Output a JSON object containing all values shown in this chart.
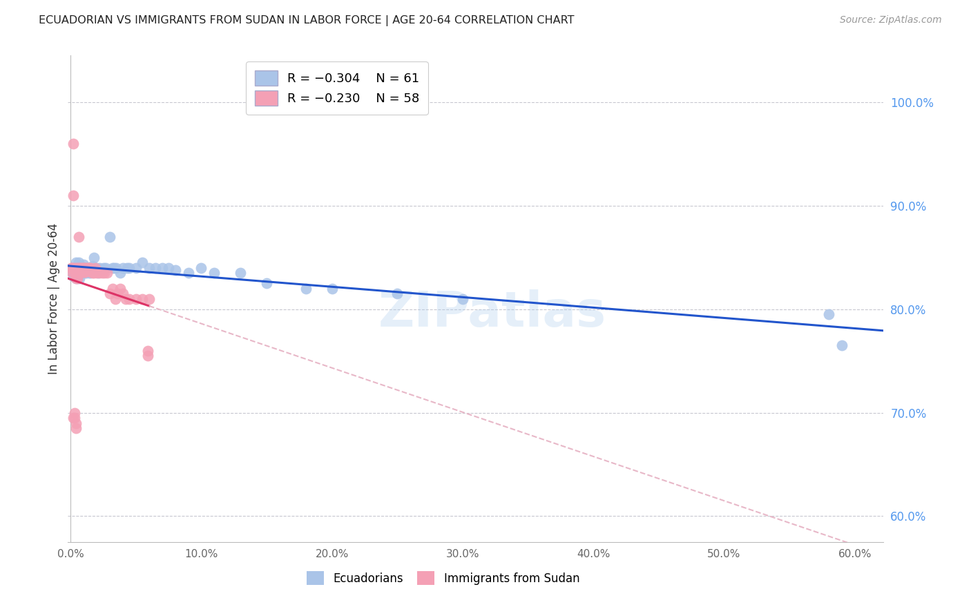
{
  "title": "ECUADORIAN VS IMMIGRANTS FROM SUDAN IN LABOR FORCE | AGE 20-64 CORRELATION CHART",
  "source": "Source: ZipAtlas.com",
  "ylabel": "In Labor Force | Age 20-64",
  "background_color": "#ffffff",
  "grid_color": "#c8c8d0",
  "xlim": [
    -0.002,
    0.622
  ],
  "ylim": [
    0.575,
    1.045
  ],
  "xticks": [
    0.0,
    0.1,
    0.2,
    0.3,
    0.4,
    0.5,
    0.6
  ],
  "xticklabels": [
    "0.0%",
    "10.0%",
    "20.0%",
    "30.0%",
    "40.0%",
    "50.0%",
    "60.0%"
  ],
  "yticks_right": [
    0.6,
    0.7,
    0.8,
    0.9,
    1.0
  ],
  "yticklabels_right": [
    "60.0%",
    "70.0%",
    "80.0%",
    "90.0%",
    "100.0%"
  ],
  "ecuadorian_color": "#aac4e8",
  "sudan_color": "#f4a0b5",
  "trendline_blue_color": "#2255cc",
  "trendline_pink_color": "#dd3366",
  "trendline_dashed_color": "#e8b8c8",
  "legend_r1": "R = -0.304",
  "legend_n1": "N = 61",
  "legend_r2": "R = -0.230",
  "legend_n2": "N = 58",
  "watermark": "ZIPatlas",
  "ecuadorians_x": [
    0.001,
    0.002,
    0.003,
    0.004,
    0.004,
    0.005,
    0.005,
    0.006,
    0.006,
    0.007,
    0.007,
    0.008,
    0.008,
    0.009,
    0.009,
    0.01,
    0.01,
    0.011,
    0.011,
    0.012,
    0.012,
    0.013,
    0.014,
    0.015,
    0.015,
    0.016,
    0.017,
    0.018,
    0.019,
    0.02,
    0.021,
    0.022,
    0.023,
    0.025,
    0.027,
    0.03,
    0.032,
    0.033,
    0.035,
    0.038,
    0.04,
    0.043,
    0.045,
    0.05,
    0.055,
    0.06,
    0.065,
    0.07,
    0.075,
    0.08,
    0.09,
    0.1,
    0.11,
    0.13,
    0.15,
    0.18,
    0.2,
    0.25,
    0.3,
    0.58,
    0.59
  ],
  "ecuadorians_y": [
    0.836,
    0.832,
    0.838,
    0.845,
    0.83,
    0.838,
    0.83,
    0.845,
    0.835,
    0.84,
    0.83,
    0.842,
    0.835,
    0.84,
    0.835,
    0.843,
    0.836,
    0.84,
    0.835,
    0.84,
    0.835,
    0.838,
    0.835,
    0.84,
    0.835,
    0.84,
    0.842,
    0.85,
    0.838,
    0.84,
    0.835,
    0.84,
    0.838,
    0.84,
    0.84,
    0.87,
    0.84,
    0.84,
    0.84,
    0.835,
    0.84,
    0.84,
    0.84,
    0.84,
    0.845,
    0.84,
    0.84,
    0.84,
    0.84,
    0.838,
    0.835,
    0.84,
    0.835,
    0.835,
    0.825,
    0.82,
    0.82,
    0.815,
    0.81,
    0.795,
    0.765
  ],
  "sudan_x": [
    0.0005,
    0.001,
    0.001,
    0.0015,
    0.002,
    0.002,
    0.003,
    0.003,
    0.004,
    0.004,
    0.004,
    0.005,
    0.005,
    0.005,
    0.006,
    0.006,
    0.006,
    0.007,
    0.007,
    0.008,
    0.008,
    0.009,
    0.009,
    0.01,
    0.01,
    0.011,
    0.011,
    0.012,
    0.013,
    0.014,
    0.015,
    0.016,
    0.017,
    0.018,
    0.019,
    0.02,
    0.022,
    0.024,
    0.026,
    0.028,
    0.03,
    0.032,
    0.034,
    0.036,
    0.038,
    0.04,
    0.042,
    0.045,
    0.05,
    0.055,
    0.06,
    0.002,
    0.003,
    0.003,
    0.004,
    0.004,
    0.059,
    0.059
  ],
  "sudan_y": [
    0.84,
    0.84,
    0.836,
    0.84,
    0.96,
    0.91,
    0.84,
    0.836,
    0.84,
    0.836,
    0.83,
    0.84,
    0.836,
    0.83,
    0.87,
    0.84,
    0.836,
    0.84,
    0.836,
    0.84,
    0.836,
    0.84,
    0.836,
    0.84,
    0.836,
    0.84,
    0.836,
    0.84,
    0.84,
    0.84,
    0.84,
    0.836,
    0.835,
    0.835,
    0.84,
    0.835,
    0.835,
    0.835,
    0.835,
    0.835,
    0.815,
    0.82,
    0.81,
    0.815,
    0.82,
    0.815,
    0.81,
    0.81,
    0.81,
    0.81,
    0.81,
    0.695,
    0.7,
    0.695,
    0.69,
    0.685,
    0.76,
    0.755
  ]
}
